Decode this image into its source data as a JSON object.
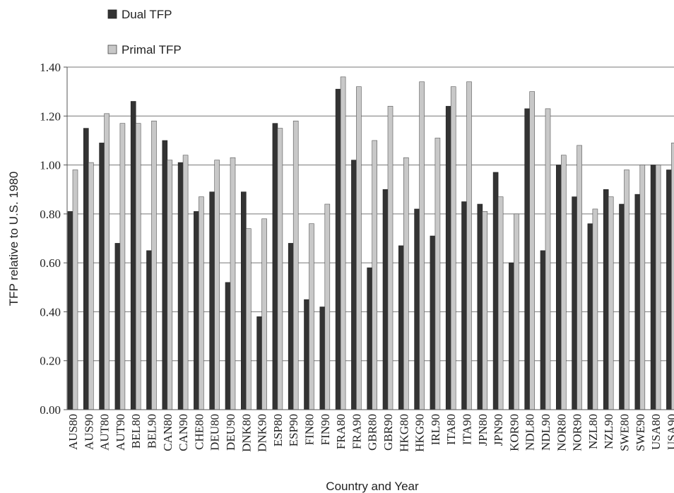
{
  "chart_data": {
    "type": "bar",
    "title": "",
    "xlabel": "Country and Year",
    "ylabel": "TFP relative to U.S. 1980",
    "ylim": [
      0,
      1.4
    ],
    "yticks": [
      "0.00",
      "0.20",
      "0.40",
      "0.60",
      "0.80",
      "1.00",
      "1.20",
      "1.40"
    ],
    "grid": true,
    "legend_position": "top-left",
    "categories": [
      "AUS80",
      "AUS90",
      "AUT80",
      "AUT90",
      "BEL80",
      "BEL90",
      "CAN80",
      "CAN90",
      "CHE80",
      "DEU80",
      "DEU90",
      "DNK80",
      "DNK90",
      "ESP80",
      "ESP90",
      "FIN80",
      "FIN90",
      "FRA80",
      "FRA90",
      "GBR80",
      "GBR90",
      "HKG80",
      "HKG90",
      "IRL90",
      "ITA80",
      "ITA90",
      "JPN80",
      "JPN90",
      "KOR90",
      "NDL80",
      "NDL90",
      "NOR80",
      "NOR90",
      "NZL80",
      "NZL90",
      "SWE80",
      "SWE90",
      "USA80",
      "USA90"
    ],
    "series": [
      {
        "name": "Dual TFP",
        "color": "#333333",
        "values": [
          0.81,
          1.15,
          1.09,
          0.68,
          1.26,
          0.65,
          1.1,
          1.01,
          0.81,
          0.89,
          0.52,
          0.89,
          0.38,
          1.17,
          0.68,
          0.45,
          0.42,
          1.31,
          1.02,
          0.58,
          0.9,
          0.67,
          0.82,
          0.71,
          1.24,
          0.85,
          0.84,
          0.97,
          0.6,
          1.23,
          0.65,
          1.0,
          0.87,
          0.76,
          0.9,
          0.84,
          0.88,
          1.0,
          0.98
        ]
      },
      {
        "name": "Primal TFP",
        "color": "#c8c8c8",
        "values": [
          0.98,
          1.01,
          1.21,
          1.17,
          1.17,
          1.18,
          1.02,
          1.04,
          0.87,
          1.02,
          1.03,
          0.74,
          0.78,
          1.15,
          1.18,
          0.76,
          0.84,
          1.36,
          1.32,
          1.1,
          1.24,
          1.03,
          1.34,
          1.11,
          1.32,
          1.34,
          0.81,
          0.87,
          0.8,
          1.3,
          1.23,
          1.04,
          1.08,
          0.82,
          0.87,
          0.98,
          1.0,
          1.0,
          1.09
        ]
      }
    ]
  }
}
